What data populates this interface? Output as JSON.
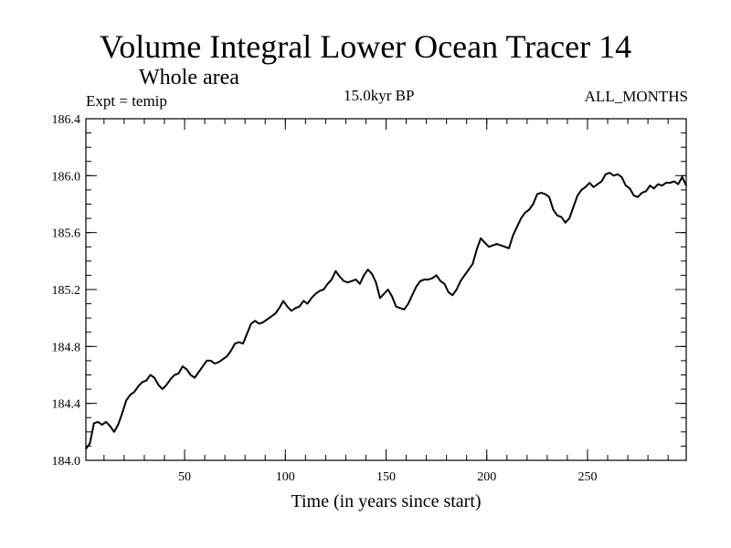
{
  "chart_data": {
    "type": "line",
    "title": "Volume Integral Lower Ocean Tracer 14",
    "subtitle": "Whole area",
    "left_label": "Expt = temip",
    "center_label": "15.0kyr BP",
    "right_label": "ALL_MONTHS",
    "xlabel": "Time (in years since start)",
    "ylabel": "",
    "xlim": [
      1,
      299
    ],
    "ylim": [
      184.0,
      186.4
    ],
    "x_ticks": [
      50,
      100,
      150,
      200,
      250
    ],
    "y_ticks": [
      184.0,
      184.4,
      184.8,
      185.2,
      185.6,
      186.0,
      186.4
    ],
    "y_tick_labels": [
      "184.0",
      "184.4",
      "184.8",
      "185.2",
      "185.6",
      "186.0",
      "186.4"
    ],
    "x_tick_labels": [
      "50",
      "100",
      "150",
      "200",
      "250"
    ],
    "series": [
      {
        "name": "Tracer 14",
        "color": "#000000",
        "x": [
          1,
          3,
          5,
          7,
          9,
          11,
          13,
          15,
          17,
          19,
          21,
          23,
          25,
          27,
          29,
          31,
          33,
          35,
          37,
          39,
          41,
          43,
          45,
          47,
          49,
          51,
          53,
          55,
          57,
          59,
          61,
          63,
          65,
          67,
          69,
          71,
          73,
          75,
          77,
          79,
          81,
          83,
          85,
          87,
          89,
          91,
          93,
          95,
          97,
          99,
          101,
          103,
          105,
          107,
          109,
          111,
          113,
          115,
          117,
          119,
          121,
          123,
          125,
          127,
          129,
          131,
          133,
          135,
          137,
          139,
          141,
          143,
          145,
          147,
          149,
          151,
          153,
          155,
          157,
          159,
          161,
          163,
          165,
          167,
          169,
          171,
          173,
          175,
          177,
          179,
          181,
          183,
          185,
          187,
          189,
          191,
          193,
          195,
          197,
          199,
          201,
          203,
          205,
          207,
          209,
          211,
          213,
          215,
          217,
          219,
          221,
          223,
          225,
          227,
          229,
          231,
          233,
          235,
          237,
          239,
          241,
          243,
          245,
          247,
          249,
          251,
          253,
          255,
          257,
          259,
          261,
          263,
          265,
          267,
          269,
          271,
          273,
          275,
          277,
          279,
          281,
          283,
          285,
          287,
          289,
          291,
          293,
          295,
          297,
          299
        ],
        "values": [
          184.08,
          184.12,
          184.26,
          184.27,
          184.25,
          184.27,
          184.24,
          184.2,
          184.25,
          184.33,
          184.42,
          184.46,
          184.48,
          184.52,
          184.55,
          184.56,
          184.6,
          184.58,
          184.53,
          184.5,
          184.53,
          184.57,
          184.6,
          184.61,
          184.66,
          184.64,
          184.6,
          184.58,
          184.62,
          184.66,
          184.7,
          184.7,
          184.68,
          184.69,
          184.71,
          184.73,
          184.77,
          184.82,
          184.83,
          184.82,
          184.89,
          184.96,
          184.98,
          184.96,
          184.97,
          184.99,
          185.01,
          185.03,
          185.07,
          185.12,
          185.08,
          185.05,
          185.07,
          185.08,
          185.12,
          185.1,
          185.14,
          185.17,
          185.19,
          185.2,
          185.24,
          185.27,
          185.33,
          185.29,
          185.26,
          185.25,
          185.26,
          185.27,
          185.24,
          185.3,
          185.34,
          185.31,
          185.25,
          185.14,
          185.17,
          185.2,
          185.15,
          185.08,
          185.07,
          185.06,
          185.1,
          185.16,
          185.22,
          185.26,
          185.27,
          185.27,
          185.28,
          185.3,
          185.26,
          185.24,
          185.18,
          185.16,
          185.2,
          185.26,
          185.3,
          185.34,
          185.38,
          185.48,
          185.56,
          185.53,
          185.5,
          185.51,
          185.52,
          185.51,
          185.5,
          185.49,
          185.58,
          185.64,
          185.7,
          185.74,
          185.76,
          185.8,
          185.87,
          185.88,
          185.87,
          185.85,
          185.76,
          185.72,
          185.71,
          185.67,
          185.7,
          185.78,
          185.86,
          185.9,
          185.92,
          185.95,
          185.92,
          185.94,
          185.96,
          186.01,
          186.02,
          186.0,
          186.01,
          185.99,
          185.93,
          185.91,
          185.86,
          185.85,
          185.88,
          185.89,
          185.93,
          185.91,
          185.94,
          185.93,
          185.95,
          185.95,
          185.96,
          185.94,
          185.99,
          185.93
        ]
      }
    ]
  }
}
